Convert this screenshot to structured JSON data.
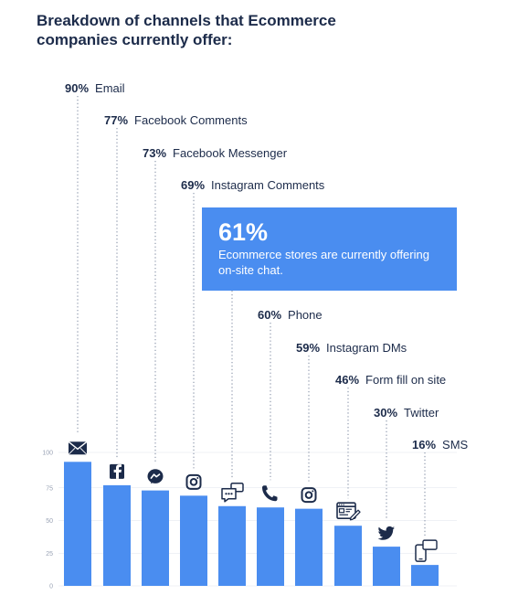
{
  "title": "Breakdown of channels that Ecommerce companies currently offer:",
  "callout": {
    "value": "61%",
    "text": "Ecommerce stores are currently offering on-site chat."
  },
  "colors": {
    "bar": "#4a8df0",
    "text": "#1c2b4a",
    "callout": "#4a8df0"
  },
  "chart_data": {
    "type": "bar",
    "categories": [
      "Email",
      "Facebook Comments",
      "Facebook Messenger",
      "Instagram Comments",
      "On-site chat",
      "Phone",
      "Instagram DMs",
      "Form fill on site",
      "Twitter",
      "SMS"
    ],
    "values": [
      90,
      77,
      73,
      69,
      61,
      60,
      59,
      46,
      30,
      16
    ],
    "labels": [
      {
        "pct": "90%",
        "name": "Email"
      },
      {
        "pct": "77%",
        "name": "Facebook Comments"
      },
      {
        "pct": "73%",
        "name": "Facebook Messenger"
      },
      {
        "pct": "69%",
        "name": "Instagram Comments"
      },
      null,
      {
        "pct": "60%",
        "name": "Phone"
      },
      {
        "pct": "59%",
        "name": "Instagram DMs"
      },
      {
        "pct": "46%",
        "name": "Form fill on site"
      },
      {
        "pct": "30%",
        "name": "Twitter"
      },
      {
        "pct": "16%",
        "name": "SMS"
      }
    ],
    "icons": [
      "mail-icon",
      "facebook-icon",
      "messenger-icon",
      "instagram-icon",
      "chat-bubble-icon",
      "phone-24-icon",
      "instagram-icon",
      "form-icon",
      "twitter-icon",
      "sms-icon"
    ],
    "yticks": [
      "100",
      "75",
      "50",
      "25",
      "0"
    ],
    "ylim": [
      0,
      100
    ],
    "grid": true
  }
}
